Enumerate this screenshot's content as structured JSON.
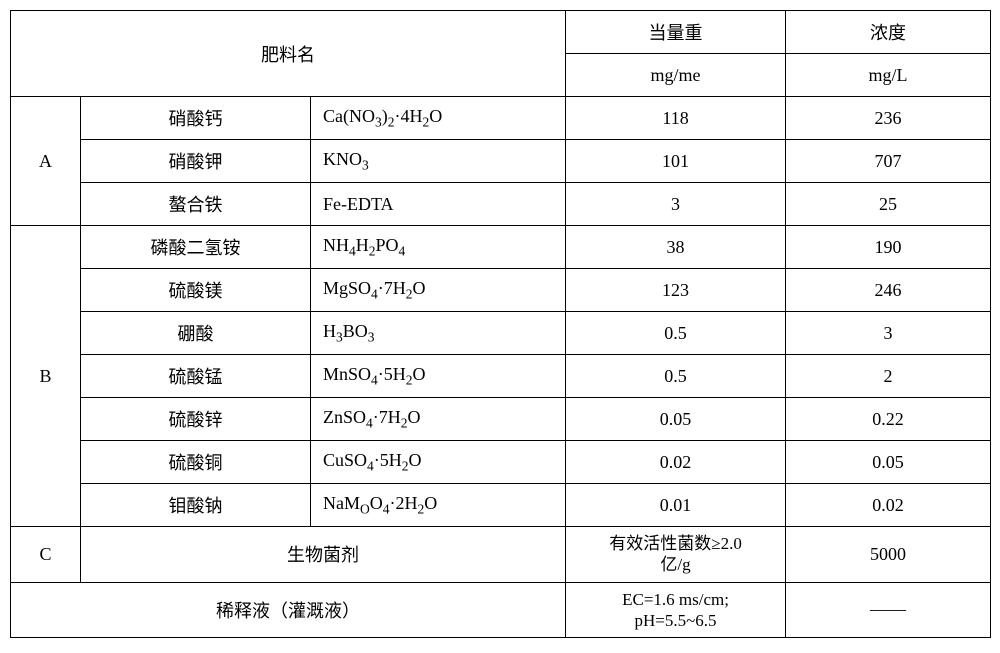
{
  "header": {
    "name_label": "肥料名",
    "eq_label": "当量重",
    "eq_unit": "mg/me",
    "conc_label": "浓度",
    "conc_unit": "mg/L"
  },
  "groups": {
    "A": "A",
    "B": "B",
    "C": "C"
  },
  "rows": {
    "a1": {
      "name": "硝酸钙",
      "formula_html": "Ca(NO<sub>3</sub>)<sub>2</sub>·4H<sub>2</sub>O",
      "eq": "118",
      "conc": "236"
    },
    "a2": {
      "name": "硝酸钾",
      "formula_html": "KNO<sub>3</sub>",
      "eq": "101",
      "conc": "707"
    },
    "a3": {
      "name": "螯合铁",
      "formula_html": "Fe-EDTA",
      "eq": "3",
      "conc": "25"
    },
    "b1": {
      "name": "磷酸二氢铵",
      "formula_html": "NH<sub>4</sub>H<sub>2</sub>PO<sub>4</sub>",
      "eq": "38",
      "conc": "190"
    },
    "b2": {
      "name": "硫酸镁",
      "formula_html": "MgSO<sub>4</sub>·7H<sub>2</sub>O",
      "eq": "123",
      "conc": "246"
    },
    "b3": {
      "name": "硼酸",
      "formula_html": "H<sub>3</sub>BO<sub>3</sub>",
      "eq": "0.5",
      "conc": "3"
    },
    "b4": {
      "name": "硫酸锰",
      "formula_html": "MnSO<sub>4</sub>·5H<sub>2</sub>O",
      "eq": "0.5",
      "conc": "2"
    },
    "b5": {
      "name": "硫酸锌",
      "formula_html": "ZnSO<sub>4</sub>·7H<sub>2</sub>O",
      "eq": "0.05",
      "conc": "0.22"
    },
    "b6": {
      "name": "硫酸铜",
      "formula_html": "CuSO<sub>4</sub>·5H<sub>2</sub>O",
      "eq": "0.02",
      "conc": "0.05"
    },
    "b7": {
      "name": "钼酸钠",
      "formula_html": "NaM<sub>O</sub>O<sub>4</sub>·2H<sub>2</sub>O",
      "eq": "0.01",
      "conc": "0.02"
    }
  },
  "c_row": {
    "name": "生物菌剂",
    "eq_line1": "有效活性菌数≥2.0",
    "eq_line2": "亿/g",
    "conc": "5000"
  },
  "dilution": {
    "name": "稀释液（灌溉液）",
    "eq_line1": "EC=1.6 ms/cm;",
    "eq_line2": "pH=5.5~6.5",
    "conc": "——"
  },
  "style": {
    "border_color": "#000000",
    "background": "#ffffff",
    "text_color": "#000000",
    "font_size_pt": 14
  }
}
